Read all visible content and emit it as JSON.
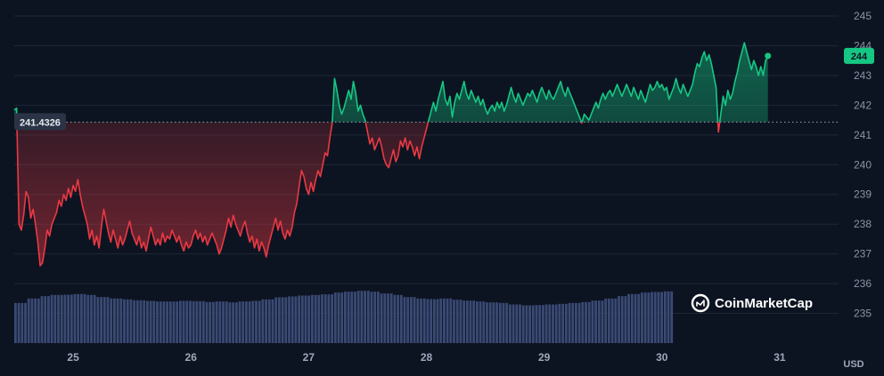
{
  "chart_data": {
    "type": "line",
    "unit": "USD",
    "reference_value": 241.4326,
    "reference_label": "241.4326",
    "last_value": 243.66,
    "last_label": "244",
    "brand": "CoinMarketCap",
    "ylim": [
      234.0,
      245.3
    ],
    "xlim": [
      24.5,
      31.5
    ],
    "y_ticks": [
      {
        "value": 235,
        "label": "235"
      },
      {
        "value": 236,
        "label": "236"
      },
      {
        "value": 237,
        "label": "237"
      },
      {
        "value": 238,
        "label": "238"
      },
      {
        "value": 239,
        "label": "239"
      },
      {
        "value": 240,
        "label": "240"
      },
      {
        "value": 241,
        "label": "241"
      },
      {
        "value": 242,
        "label": "242"
      },
      {
        "value": 243,
        "label": "243"
      },
      {
        "value": 244,
        "label": "244"
      },
      {
        "value": 245,
        "label": "245"
      }
    ],
    "x_ticks": [
      {
        "value": 25,
        "label": "25"
      },
      {
        "value": 26,
        "label": "26"
      },
      {
        "value": 27,
        "label": "27"
      },
      {
        "value": 28,
        "label": "28"
      },
      {
        "value": 29,
        "label": "29"
      },
      {
        "value": 30,
        "label": "30"
      },
      {
        "value": 31,
        "label": "31"
      }
    ],
    "colors": {
      "up": "#16c784",
      "down": "#ea3943",
      "grid": "#1f2736",
      "volume": "#3a4a75",
      "background": "#0d1421",
      "reference": "#9aa4b8"
    },
    "price": [
      [
        24.5,
        241.84
      ],
      [
        24.52,
        241.9
      ],
      [
        24.54,
        238.0
      ],
      [
        24.56,
        237.8
      ],
      [
        24.58,
        238.3
      ],
      [
        24.6,
        239.1
      ],
      [
        24.62,
        238.9
      ],
      [
        24.64,
        238.2
      ],
      [
        24.66,
        238.5
      ],
      [
        24.68,
        238.0
      ],
      [
        24.7,
        237.4
      ],
      [
        24.72,
        236.6
      ],
      [
        24.74,
        236.7
      ],
      [
        24.76,
        237.2
      ],
      [
        24.78,
        237.8
      ],
      [
        24.8,
        237.6
      ],
      [
        24.82,
        238.0
      ],
      [
        24.84,
        238.2
      ],
      [
        24.86,
        238.4
      ],
      [
        24.88,
        238.8
      ],
      [
        24.9,
        238.6
      ],
      [
        24.92,
        239.0
      ],
      [
        24.94,
        238.8
      ],
      [
        24.96,
        239.2
      ],
      [
        24.98,
        238.9
      ],
      [
        25.0,
        239.3
      ],
      [
        25.02,
        239.1
      ],
      [
        25.04,
        239.5
      ],
      [
        25.06,
        239.0
      ],
      [
        25.08,
        238.6
      ],
      [
        25.1,
        238.3
      ],
      [
        25.12,
        238.0
      ],
      [
        25.14,
        237.5
      ],
      [
        25.16,
        237.8
      ],
      [
        25.18,
        237.3
      ],
      [
        25.2,
        237.6
      ],
      [
        25.22,
        237.2
      ],
      [
        25.24,
        237.9
      ],
      [
        25.26,
        238.5
      ],
      [
        25.28,
        238.1
      ],
      [
        25.3,
        237.7
      ],
      [
        25.32,
        237.4
      ],
      [
        25.34,
        237.8
      ],
      [
        25.36,
        237.5
      ],
      [
        25.38,
        237.2
      ],
      [
        25.4,
        237.6
      ],
      [
        25.42,
        237.3
      ],
      [
        25.44,
        237.5
      ],
      [
        25.46,
        237.8
      ],
      [
        25.48,
        238.1
      ],
      [
        25.5,
        237.7
      ],
      [
        25.52,
        237.5
      ],
      [
        25.54,
        237.3
      ],
      [
        25.56,
        237.6
      ],
      [
        25.58,
        237.2
      ],
      [
        25.6,
        237.4
      ],
      [
        25.62,
        237.1
      ],
      [
        25.64,
        237.5
      ],
      [
        25.66,
        237.9
      ],
      [
        25.68,
        237.6
      ],
      [
        25.7,
        237.3
      ],
      [
        25.72,
        237.5
      ],
      [
        25.74,
        237.3
      ],
      [
        25.76,
        237.7
      ],
      [
        25.78,
        237.4
      ],
      [
        25.8,
        237.6
      ],
      [
        25.82,
        237.5
      ],
      [
        25.84,
        237.8
      ],
      [
        25.86,
        237.6
      ],
      [
        25.88,
        237.4
      ],
      [
        25.9,
        237.6
      ],
      [
        25.92,
        237.3
      ],
      [
        25.94,
        237.1
      ],
      [
        25.96,
        237.4
      ],
      [
        25.98,
        237.2
      ],
      [
        26.0,
        237.3
      ],
      [
        26.02,
        237.6
      ],
      [
        26.04,
        237.8
      ],
      [
        26.06,
        237.5
      ],
      [
        26.08,
        237.7
      ],
      [
        26.1,
        237.4
      ],
      [
        26.12,
        237.6
      ],
      [
        26.14,
        237.3
      ],
      [
        26.16,
        237.5
      ],
      [
        26.18,
        237.7
      ],
      [
        26.2,
        237.5
      ],
      [
        26.22,
        237.3
      ],
      [
        26.24,
        237.0
      ],
      [
        26.26,
        237.2
      ],
      [
        26.28,
        237.5
      ],
      [
        26.3,
        237.8
      ],
      [
        26.32,
        238.2
      ],
      [
        26.34,
        237.9
      ],
      [
        26.36,
        238.3
      ],
      [
        26.38,
        238.0
      ],
      [
        26.4,
        237.8
      ],
      [
        26.42,
        237.6
      ],
      [
        26.44,
        237.9
      ],
      [
        26.46,
        238.1
      ],
      [
        26.48,
        237.7
      ],
      [
        26.5,
        237.4
      ],
      [
        26.52,
        237.6
      ],
      [
        26.54,
        237.2
      ],
      [
        26.56,
        237.5
      ],
      [
        26.58,
        237.1
      ],
      [
        26.6,
        237.4
      ],
      [
        26.62,
        237.2
      ],
      [
        26.64,
        236.9
      ],
      [
        26.66,
        237.3
      ],
      [
        26.68,
        237.6
      ],
      [
        26.7,
        237.9
      ],
      [
        26.72,
        238.2
      ],
      [
        26.74,
        237.8
      ],
      [
        26.76,
        238.1
      ],
      [
        26.78,
        237.7
      ],
      [
        26.8,
        237.5
      ],
      [
        26.82,
        237.8
      ],
      [
        26.84,
        237.6
      ],
      [
        26.86,
        237.9
      ],
      [
        26.88,
        238.4
      ],
      [
        26.9,
        238.7
      ],
      [
        26.92,
        239.3
      ],
      [
        26.94,
        239.8
      ],
      [
        26.96,
        239.6
      ],
      [
        26.98,
        239.2
      ],
      [
        27.0,
        239.0
      ],
      [
        27.02,
        239.4
      ],
      [
        27.04,
        239.1
      ],
      [
        27.06,
        239.5
      ],
      [
        27.08,
        239.8
      ],
      [
        27.1,
        239.6
      ],
      [
        27.12,
        240.0
      ],
      [
        27.14,
        240.4
      ],
      [
        27.16,
        240.3
      ],
      [
        27.18,
        240.9
      ],
      [
        27.2,
        241.4
      ],
      [
        27.22,
        242.9
      ],
      [
        27.24,
        242.5
      ],
      [
        27.26,
        242.0
      ],
      [
        27.28,
        241.7
      ],
      [
        27.3,
        241.9
      ],
      [
        27.32,
        242.2
      ],
      [
        27.34,
        242.5
      ],
      [
        27.36,
        242.2
      ],
      [
        27.38,
        242.8
      ],
      [
        27.4,
        242.4
      ],
      [
        27.42,
        241.8
      ],
      [
        27.44,
        242.0
      ],
      [
        27.46,
        241.7
      ],
      [
        27.48,
        241.5
      ],
      [
        27.5,
        241.1
      ],
      [
        27.52,
        240.7
      ],
      [
        27.54,
        240.9
      ],
      [
        27.56,
        240.5
      ],
      [
        27.58,
        240.7
      ],
      [
        27.6,
        240.9
      ],
      [
        27.62,
        240.6
      ],
      [
        27.64,
        240.2
      ],
      [
        27.66,
        240.0
      ],
      [
        27.68,
        239.9
      ],
      [
        27.7,
        240.2
      ],
      [
        27.72,
        240.5
      ],
      [
        27.74,
        240.1
      ],
      [
        27.76,
        240.3
      ],
      [
        27.78,
        240.8
      ],
      [
        27.8,
        240.6
      ],
      [
        27.82,
        240.9
      ],
      [
        27.84,
        240.5
      ],
      [
        27.86,
        240.8
      ],
      [
        27.88,
        240.6
      ],
      [
        27.9,
        240.3
      ],
      [
        27.92,
        240.6
      ],
      [
        27.94,
        240.2
      ],
      [
        27.96,
        240.6
      ],
      [
        27.98,
        240.9
      ],
      [
        28.0,
        241.2
      ],
      [
        28.02,
        241.5
      ],
      [
        28.04,
        241.8
      ],
      [
        28.06,
        242.1
      ],
      [
        28.08,
        241.8
      ],
      [
        28.1,
        242.2
      ],
      [
        28.12,
        242.5
      ],
      [
        28.14,
        242.8
      ],
      [
        28.16,
        242.2
      ],
      [
        28.18,
        242.0
      ],
      [
        28.2,
        242.3
      ],
      [
        28.22,
        241.6
      ],
      [
        28.24,
        242.1
      ],
      [
        28.26,
        242.4
      ],
      [
        28.28,
        242.2
      ],
      [
        28.3,
        242.5
      ],
      [
        28.32,
        242.8
      ],
      [
        28.34,
        242.4
      ],
      [
        28.36,
        242.2
      ],
      [
        28.38,
        242.5
      ],
      [
        28.4,
        242.3
      ],
      [
        28.42,
        242.1
      ],
      [
        28.44,
        242.3
      ],
      [
        28.46,
        242.0
      ],
      [
        28.48,
        242.2
      ],
      [
        28.5,
        241.9
      ],
      [
        28.52,
        241.7
      ],
      [
        28.54,
        241.9
      ],
      [
        28.56,
        242.0
      ],
      [
        28.58,
        241.8
      ],
      [
        28.6,
        242.1
      ],
      [
        28.62,
        241.9
      ],
      [
        28.64,
        242.1
      ],
      [
        28.66,
        241.8
      ],
      [
        28.68,
        242.0
      ],
      [
        28.7,
        242.3
      ],
      [
        28.72,
        242.6
      ],
      [
        28.74,
        242.3
      ],
      [
        28.76,
        242.1
      ],
      [
        28.78,
        242.4
      ],
      [
        28.8,
        242.2
      ],
      [
        28.82,
        242.0
      ],
      [
        28.84,
        242.2
      ],
      [
        28.86,
        242.4
      ],
      [
        28.88,
        242.3
      ],
      [
        28.9,
        242.5
      ],
      [
        28.92,
        242.3
      ],
      [
        28.94,
        242.1
      ],
      [
        28.96,
        242.4
      ],
      [
        28.98,
        242.6
      ],
      [
        29.0,
        242.4
      ],
      [
        29.02,
        242.2
      ],
      [
        29.04,
        242.5
      ],
      [
        29.06,
        242.3
      ],
      [
        29.08,
        242.2
      ],
      [
        29.1,
        242.4
      ],
      [
        29.12,
        242.6
      ],
      [
        29.14,
        242.8
      ],
      [
        29.16,
        242.5
      ],
      [
        29.18,
        242.3
      ],
      [
        29.2,
        242.6
      ],
      [
        29.22,
        242.4
      ],
      [
        29.24,
        242.2
      ],
      [
        29.26,
        242.0
      ],
      [
        29.28,
        241.8
      ],
      [
        29.3,
        241.6
      ],
      [
        29.32,
        241.4
      ],
      [
        29.34,
        241.7
      ],
      [
        29.36,
        241.6
      ],
      [
        29.38,
        241.5
      ],
      [
        29.4,
        241.7
      ],
      [
        29.42,
        241.9
      ],
      [
        29.44,
        242.1
      ],
      [
        29.46,
        241.9
      ],
      [
        29.48,
        242.2
      ],
      [
        29.5,
        242.4
      ],
      [
        29.52,
        242.2
      ],
      [
        29.54,
        242.4
      ],
      [
        29.56,
        242.5
      ],
      [
        29.58,
        242.3
      ],
      [
        29.6,
        242.5
      ],
      [
        29.62,
        242.7
      ],
      [
        29.64,
        242.5
      ],
      [
        29.66,
        242.3
      ],
      [
        29.68,
        242.5
      ],
      [
        29.7,
        242.7
      ],
      [
        29.72,
        242.5
      ],
      [
        29.74,
        242.3
      ],
      [
        29.76,
        242.6
      ],
      [
        29.78,
        242.4
      ],
      [
        29.8,
        242.2
      ],
      [
        29.82,
        242.5
      ],
      [
        29.84,
        242.3
      ],
      [
        29.86,
        242.1
      ],
      [
        29.88,
        242.4
      ],
      [
        29.9,
        242.7
      ],
      [
        29.92,
        242.5
      ],
      [
        29.94,
        242.6
      ],
      [
        29.96,
        242.8
      ],
      [
        29.98,
        242.6
      ],
      [
        30.0,
        242.7
      ],
      [
        30.02,
        242.5
      ],
      [
        30.04,
        242.6
      ],
      [
        30.06,
        242.2
      ],
      [
        30.08,
        242.4
      ],
      [
        30.1,
        242.6
      ],
      [
        30.12,
        242.9
      ],
      [
        30.14,
        242.6
      ],
      [
        30.16,
        242.4
      ],
      [
        30.18,
        242.7
      ],
      [
        30.2,
        242.5
      ],
      [
        30.22,
        242.3
      ],
      [
        30.24,
        242.5
      ],
      [
        30.26,
        242.7
      ],
      [
        30.28,
        243.1
      ],
      [
        30.3,
        243.4
      ],
      [
        30.32,
        243.3
      ],
      [
        30.34,
        243.6
      ],
      [
        30.36,
        243.8
      ],
      [
        30.38,
        243.5
      ],
      [
        30.4,
        243.7
      ],
      [
        30.42,
        243.4
      ],
      [
        30.44,
        243.0
      ],
      [
        30.46,
        242.6
      ],
      [
        30.48,
        241.1
      ],
      [
        30.5,
        241.7
      ],
      [
        30.52,
        242.3
      ],
      [
        30.54,
        242.0
      ],
      [
        30.56,
        242.5
      ],
      [
        30.58,
        242.2
      ],
      [
        30.6,
        242.4
      ],
      [
        30.62,
        242.8
      ],
      [
        30.64,
        243.1
      ],
      [
        30.66,
        243.5
      ],
      [
        30.68,
        243.8
      ],
      [
        30.7,
        244.1
      ],
      [
        30.72,
        243.8
      ],
      [
        30.74,
        243.5
      ],
      [
        30.76,
        243.2
      ],
      [
        30.78,
        243.5
      ],
      [
        30.8,
        243.3
      ],
      [
        30.82,
        243.0
      ],
      [
        30.84,
        243.3
      ],
      [
        30.86,
        243.0
      ],
      [
        30.88,
        243.5
      ],
      [
        30.9,
        243.66
      ]
    ],
    "volume": [
      [
        24.5,
        235.35
      ],
      [
        24.6,
        235.5
      ],
      [
        24.7,
        235.58
      ],
      [
        24.8,
        235.62
      ],
      [
        24.9,
        235.63
      ],
      [
        25.0,
        235.65
      ],
      [
        25.1,
        235.62
      ],
      [
        25.2,
        235.55
      ],
      [
        25.3,
        235.5
      ],
      [
        25.4,
        235.47
      ],
      [
        25.5,
        235.44
      ],
      [
        25.6,
        235.42
      ],
      [
        25.7,
        235.4
      ],
      [
        25.8,
        235.4
      ],
      [
        25.9,
        235.42
      ],
      [
        26.0,
        235.41
      ],
      [
        26.1,
        235.38
      ],
      [
        26.2,
        235.4
      ],
      [
        26.3,
        235.37
      ],
      [
        26.4,
        235.4
      ],
      [
        26.5,
        235.42
      ],
      [
        26.6,
        235.47
      ],
      [
        26.7,
        235.54
      ],
      [
        26.8,
        235.57
      ],
      [
        26.9,
        235.6
      ],
      [
        27.0,
        235.62
      ],
      [
        27.1,
        235.64
      ],
      [
        27.2,
        235.7
      ],
      [
        27.3,
        235.73
      ],
      [
        27.4,
        235.76
      ],
      [
        27.5,
        235.73
      ],
      [
        27.6,
        235.67
      ],
      [
        27.7,
        235.62
      ],
      [
        27.8,
        235.55
      ],
      [
        27.9,
        235.5
      ],
      [
        28.0,
        235.48
      ],
      [
        28.1,
        235.5
      ],
      [
        28.2,
        235.46
      ],
      [
        28.3,
        235.43
      ],
      [
        28.4,
        235.4
      ],
      [
        28.5,
        235.37
      ],
      [
        28.6,
        235.35
      ],
      [
        28.7,
        235.3
      ],
      [
        28.8,
        235.27
      ],
      [
        28.9,
        235.28
      ],
      [
        29.0,
        235.3
      ],
      [
        29.1,
        235.32
      ],
      [
        29.2,
        235.35
      ],
      [
        29.3,
        235.38
      ],
      [
        29.4,
        235.43
      ],
      [
        29.5,
        235.5
      ],
      [
        29.6,
        235.58
      ],
      [
        29.7,
        235.65
      ],
      [
        29.8,
        235.7
      ],
      [
        29.9,
        235.72
      ],
      [
        30.0,
        235.74
      ]
    ]
  }
}
